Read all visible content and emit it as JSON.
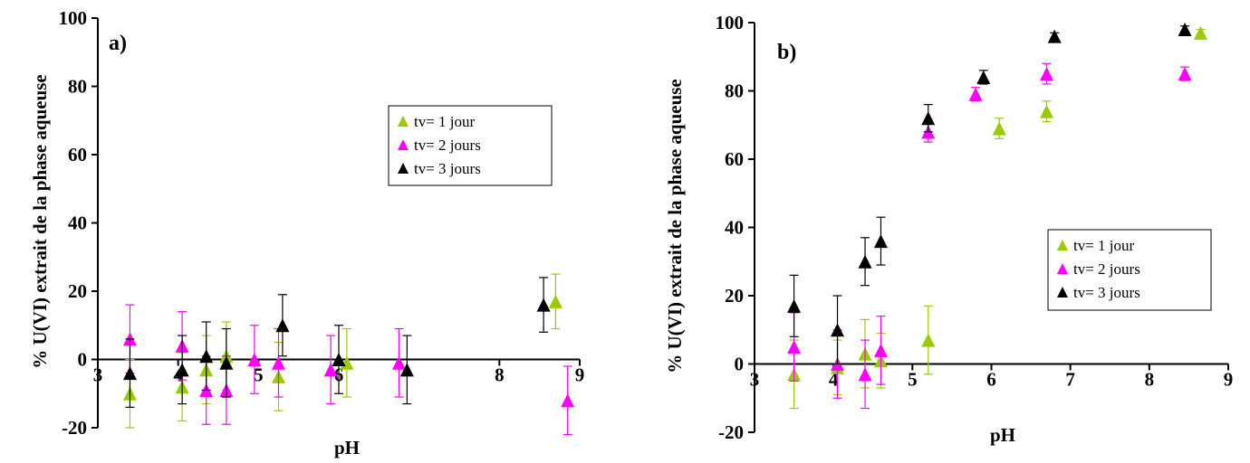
{
  "chart_data": [
    {
      "type": "scatter",
      "panel_label": "a)",
      "xlabel": "pH",
      "ylabel": "% U(VI) extrait de la phase aqueuse",
      "xlim": [
        3,
        9
      ],
      "ylim": [
        -20,
        100
      ],
      "xticks": [
        "3",
        "4",
        "5",
        "6",
        "8",
        "9"
      ],
      "yticks": [
        "-20",
        "0",
        "20",
        "40",
        "60",
        "80",
        "100"
      ],
      "x_axis_at_y": 0,
      "grid": false,
      "legend_position": "top-right",
      "series": [
        {
          "name": "tv= 1 jour",
          "color": "#99cc00",
          "marker": "triangle",
          "points": [
            [
              3.4,
              -10,
              10
            ],
            [
              4.05,
              -8,
              10
            ],
            [
              4.35,
              -3,
              10
            ],
            [
              4.6,
              1,
              10
            ],
            [
              5.25,
              -5,
              10
            ],
            [
              6.1,
              -1,
              10
            ],
            [
              8.7,
              17,
              8
            ]
          ]
        },
        {
          "name": "tv= 2 jours",
          "color": "#ff00ff",
          "marker": "triangle",
          "points": [
            [
              3.4,
              6,
              10
            ],
            [
              4.05,
              4,
              10
            ],
            [
              4.35,
              -9,
              10
            ],
            [
              4.6,
              -9,
              10
            ],
            [
              4.95,
              0,
              10
            ],
            [
              5.25,
              -1,
              10
            ],
            [
              5.9,
              -3,
              10
            ],
            [
              6.75,
              -1,
              10
            ],
            [
              8.85,
              -12,
              10
            ]
          ]
        },
        {
          "name": "tv= 3 jours",
          "color": "#000000",
          "marker": "triangle",
          "points": [
            [
              3.4,
              -4,
              10
            ],
            [
              4.05,
              -3,
              10
            ],
            [
              4.35,
              1,
              10
            ],
            [
              4.6,
              -1,
              10
            ],
            [
              5.3,
              10,
              9
            ],
            [
              6.0,
              0,
              10
            ],
            [
              6.85,
              -3,
              10
            ],
            [
              8.55,
              16,
              8
            ]
          ]
        }
      ]
    },
    {
      "type": "scatter",
      "panel_label": "b)",
      "xlabel": "pH",
      "ylabel": "% U(VI) extrait de la phase aqueuse",
      "xlim": [
        3,
        9
      ],
      "ylim": [
        -20,
        100
      ],
      "xticks": [
        "3",
        "4",
        "5",
        "6",
        "7",
        "8",
        "9"
      ],
      "yticks": [
        "-20",
        "0",
        "20",
        "40",
        "60",
        "80",
        "100"
      ],
      "x_axis_at_y": 0,
      "grid": false,
      "legend_position": "middle-right",
      "series": [
        {
          "name": "tv= 1 jour",
          "color": "#99cc00",
          "marker": "triangle",
          "points": [
            [
              3.5,
              -3,
              10
            ],
            [
              4.05,
              -1,
              8
            ],
            [
              4.4,
              3,
              10
            ],
            [
              4.6,
              1,
              8
            ],
            [
              5.2,
              7,
              10
            ],
            [
              6.1,
              69,
              3
            ],
            [
              6.7,
              74,
              3
            ],
            [
              8.65,
              97,
              1
            ]
          ]
        },
        {
          "name": "tv= 2 jours",
          "color": "#ff00ff",
          "marker": "triangle",
          "points": [
            [
              3.5,
              5,
              10
            ],
            [
              4.05,
              0,
              10
            ],
            [
              4.4,
              -3,
              10
            ],
            [
              4.6,
              4,
              10
            ],
            [
              5.2,
              68,
              3
            ],
            [
              5.8,
              79,
              2
            ],
            [
              6.7,
              85,
              3
            ],
            [
              8.45,
              85,
              2
            ]
          ]
        },
        {
          "name": "tv= 3 jours",
          "color": "#000000",
          "marker": "triangle",
          "points": [
            [
              3.5,
              17,
              9
            ],
            [
              4.05,
              10,
              10
            ],
            [
              4.4,
              30,
              7
            ],
            [
              4.6,
              36,
              7
            ],
            [
              5.2,
              72,
              4
            ],
            [
              5.9,
              84,
              2
            ],
            [
              6.8,
              96,
              1
            ],
            [
              8.45,
              98,
              1
            ]
          ]
        }
      ]
    }
  ]
}
